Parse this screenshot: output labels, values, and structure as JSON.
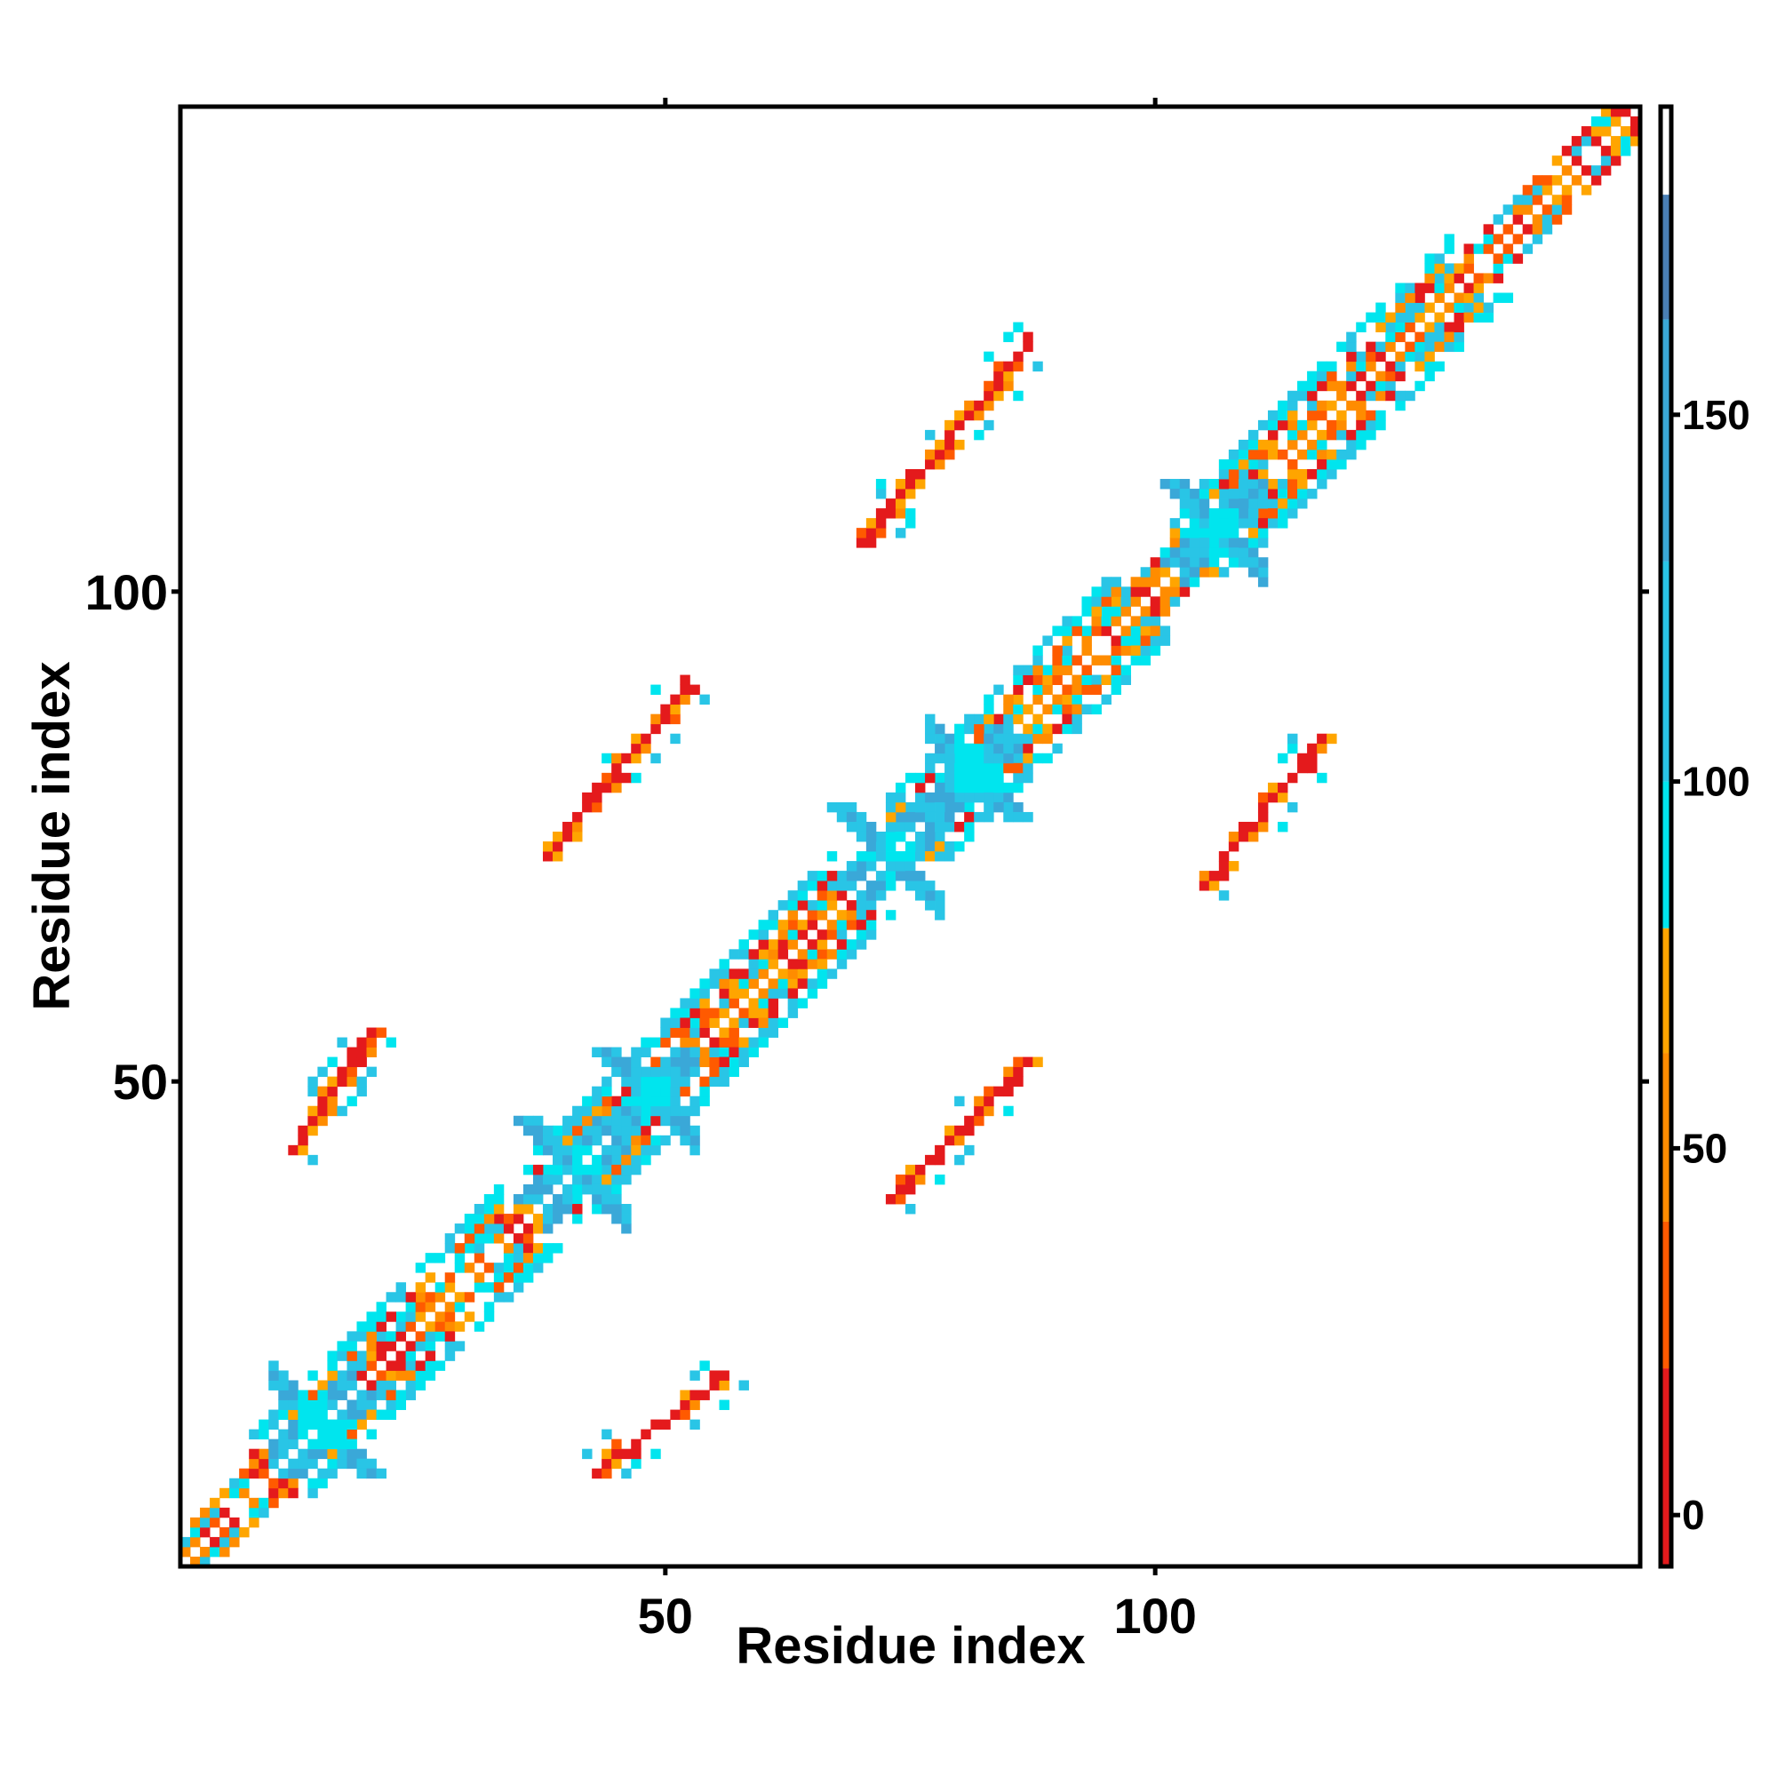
{
  "chart_data": {
    "type": "heatmap",
    "title": "",
    "xlabel": "Residue index",
    "ylabel": "Residue index",
    "xlim": [
      1,
      149
    ],
    "ylim": [
      1,
      149
    ],
    "x_ticks": [
      "50",
      "100"
    ],
    "y_ticks": [
      "50",
      "100"
    ],
    "colorbar": {
      "ticks": [
        "0",
        "50",
        "100",
        "150"
      ],
      "range": [
        -7,
        192
      ],
      "bands": [
        {
          "from": -7,
          "to": 20,
          "color": "#e41a1c"
        },
        {
          "from": 20,
          "to": 40,
          "color": "#ff5a00"
        },
        {
          "from": 40,
          "to": 63,
          "color": "#ff8c00"
        },
        {
          "from": 63,
          "to": 80,
          "color": "#ffa500"
        },
        {
          "from": 80,
          "to": 100,
          "color": "#00e5ee"
        },
        {
          "from": 100,
          "to": 130,
          "color": "#29c5e6"
        },
        {
          "from": 130,
          "to": 163,
          "color": "#3aa8d8"
        },
        {
          "from": 163,
          "to": 180,
          "color": "#4a7fb5"
        },
        {
          "from": 180,
          "to": 192,
          "color": "#ffffff"
        }
      ]
    },
    "series_color_values": {
      "red": 5,
      "orange_red": 30,
      "orange": 55,
      "light_orange": 70,
      "cyan": 90,
      "light_blue": 115,
      "steel_blue": 150
    },
    "contacts": {
      "diagonal": {
        "from": 1,
        "to": 149
      },
      "helices": [
        {
          "from": 8,
          "to": 20
        },
        {
          "from": 18,
          "to": 33
        },
        {
          "from": 36,
          "to": 44
        },
        {
          "from": 43,
          "to": 56
        },
        {
          "from": 50,
          "to": 67
        },
        {
          "from": 73,
          "to": 80
        },
        {
          "from": 80,
          "to": 96
        },
        {
          "from": 102,
          "to": 110
        },
        {
          "from": 110,
          "to": 130
        }
      ],
      "crossings": [
        {
          "x": 16,
          "y": 14
        },
        {
          "x": 40,
          "y": 42
        },
        {
          "x": 48,
          "y": 49
        },
        {
          "x": 72,
          "y": 74
        },
        {
          "x": 82,
          "y": 81
        },
        {
          "x": 106,
          "y": 107
        }
      ],
      "off_diagonal_strands": [
        {
          "x0": 12,
          "y0": 43,
          "x1": 20,
          "y1": 55
        },
        {
          "x0": 38,
          "y0": 73,
          "x1": 52,
          "y1": 90
        },
        {
          "x0": 70,
          "y0": 105,
          "x1": 87,
          "y1": 125
        },
        {
          "x0": 43,
          "y0": 10,
          "x1": 56,
          "y1": 20
        },
        {
          "x0": 73,
          "y0": 38,
          "x1": 87,
          "y1": 52
        },
        {
          "x0": 105,
          "y0": 70,
          "x1": 117,
          "y1": 85
        }
      ]
    }
  }
}
